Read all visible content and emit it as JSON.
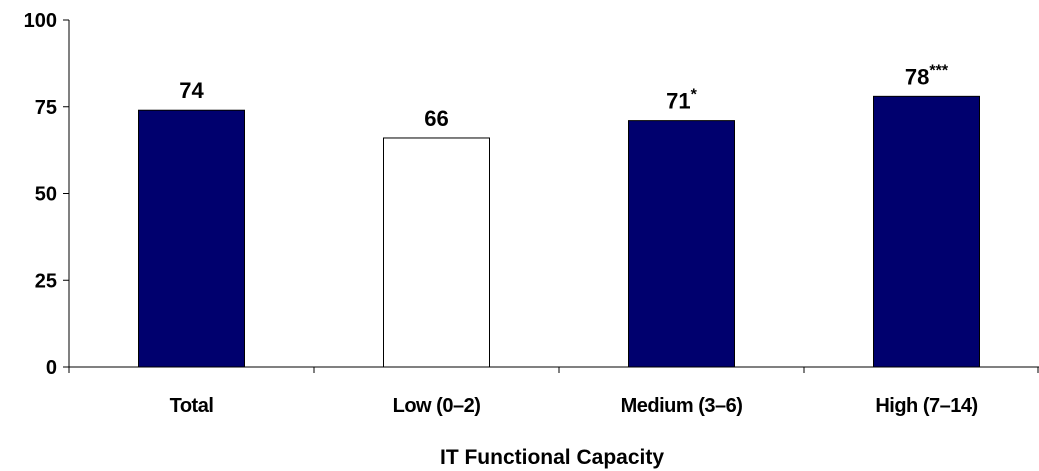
{
  "chart_data": {
    "type": "bar",
    "categories": [
      "Total",
      "Low (0–2)",
      "Medium (3–6)",
      "High (7–14)"
    ],
    "values": [
      74,
      66,
      71,
      78
    ],
    "data_labels": [
      "74",
      "66",
      "71",
      "78"
    ],
    "significance_marks": [
      "",
      "",
      "*",
      "***"
    ],
    "bar_colors": [
      "#00006e",
      "#ffffff",
      "#00006e",
      "#00006e"
    ],
    "bar_stroke": "#000000",
    "title": "",
    "xlabel": "IT Functional Capacity",
    "ylabel": "",
    "ylim": [
      0,
      100
    ],
    "yticks": [
      0,
      25,
      50,
      75,
      100
    ],
    "grid": false,
    "legend": "none"
  }
}
